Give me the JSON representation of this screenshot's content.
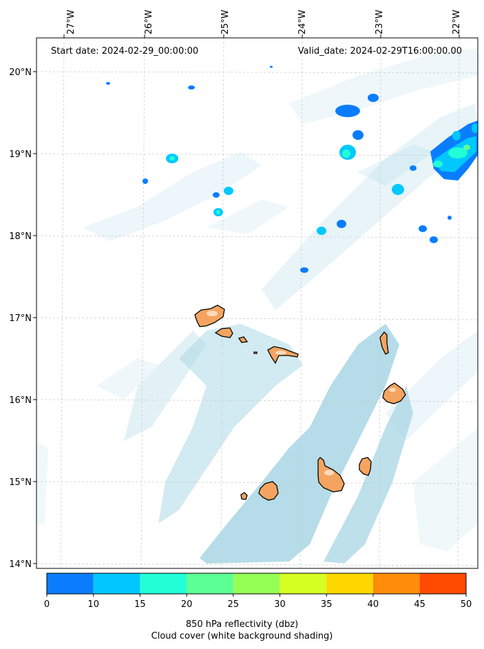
{
  "header": {
    "start_date": "Start date: 2024-02-29_00:00:00",
    "valid_date": "Valid_date: 2024-02-29T16:00:00.00"
  },
  "axes": {
    "lon_ticks": [
      "27°W",
      "26°W",
      "25°W",
      "24°W",
      "23°W",
      "22°W"
    ],
    "lat_ticks": [
      "20°N",
      "19°N",
      "18°N",
      "17°N",
      "16°N",
      "15°N",
      "14°N"
    ]
  },
  "colorbar": {
    "ticks": [
      "0",
      "10",
      "15",
      "20",
      "25",
      "30",
      "35",
      "40",
      "45",
      "50"
    ],
    "colors": [
      "#0a7dff",
      "#00c8ff",
      "#22ffd6",
      "#5cff94",
      "#96ff55",
      "#d6ff22",
      "#ffd700",
      "#ff8c0a",
      "#ff4b00"
    ],
    "title_line1": "850 hPa reflectivity (dbz)",
    "title_line2": "Cloud cover (white background shading)"
  },
  "colors": {
    "land": "#f4a460",
    "cloud": "#add8e6",
    "grid": "#cccccc"
  }
}
